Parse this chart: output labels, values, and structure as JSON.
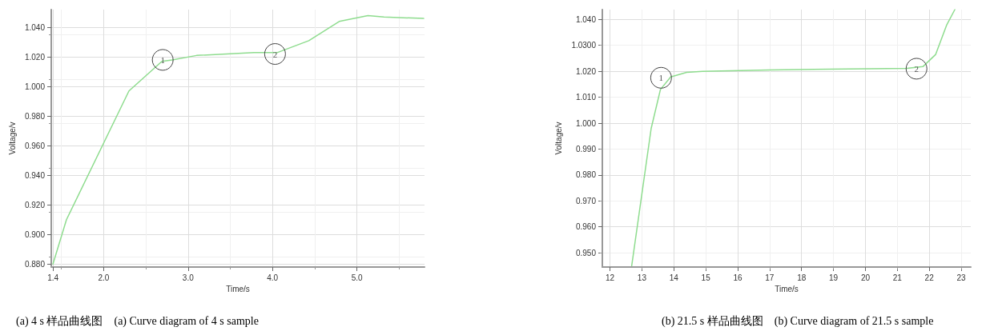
{
  "chart_data": [
    {
      "type": "line",
      "xlabel": "Time/s",
      "ylabel": "Voltage/v",
      "grid": true,
      "marker": "none",
      "xlim": [
        1.38,
        5.8
      ],
      "ylim": [
        0.878,
        1.052
      ],
      "xticks": [
        {
          "value": 1.4,
          "label": "1.4"
        },
        {
          "value": 2,
          "label": "2.0"
        },
        {
          "value": 3,
          "label": "3.0"
        },
        {
          "value": 4,
          "label": "4.0"
        },
        {
          "value": 5,
          "label": "5.0"
        }
      ],
      "yticks": [
        {
          "value": 0.88,
          "label": "0.880"
        },
        {
          "value": 0.9,
          "label": "0.900"
        },
        {
          "value": 0.92,
          "label": "0.920"
        },
        {
          "value": 0.94,
          "label": "0.940"
        },
        {
          "value": 0.96,
          "label": "0.960"
        },
        {
          "value": 0.98,
          "label": "0.980"
        },
        {
          "value": 1.0,
          "label": "1.000"
        },
        {
          "value": 1.02,
          "label": "1.020"
        },
        {
          "value": 1.04,
          "label": "1.040"
        }
      ],
      "series": [
        {
          "color": "#8edc8e",
          "x": [
            1.4,
            1.56,
            2.3,
            2.69,
            2.81,
            3.1,
            3.78,
            4.06,
            4.43,
            4.79,
            5.13,
            5.32,
            5.79
          ],
          "values": [
            0.88,
            0.91,
            0.997,
            1.017,
            1.018,
            1.021,
            1.023,
            1.023,
            1.031,
            1.044,
            1.048,
            1.047,
            1.046
          ]
        }
      ],
      "annotations": [
        {
          "text": "1",
          "x": 2.7,
          "y": 1.018
        },
        {
          "text": "2",
          "x": 4.03,
          "y": 1.022
        },
        "(a) 4 s 样品曲线图　(a) Curve diagram of 4 s sample"
      ]
    },
    {
      "type": "line",
      "xlabel": "Time/s",
      "ylabel": "Voltage/v",
      "grid": true,
      "marker": "none",
      "xlim": [
        11.76,
        23.3
      ],
      "ylim": [
        0.9445,
        1.0438
      ],
      "xticks": [
        12,
        13,
        14,
        15,
        16,
        17,
        18,
        19,
        20,
        21,
        22,
        23
      ],
      "yticks": [
        {
          "value": 0.95,
          "label": "0.950"
        },
        {
          "value": 0.96,
          "label": "0.960"
        },
        {
          "value": 0.97,
          "label": "0.970"
        },
        {
          "value": 0.98,
          "label": "0.980"
        },
        {
          "value": 0.99,
          "label": "0.990"
        },
        {
          "value": 1.0,
          "label": "1.000"
        },
        {
          "value": 1.01,
          "label": "1.010"
        },
        {
          "value": 1.02,
          "label": "1.020"
        },
        {
          "value": 1.03,
          "label": "1.0300"
        },
        {
          "value": 1.04,
          "label": "1.040"
        }
      ],
      "series": [
        {
          "color": "#8edc8e",
          "x": [
            12.68,
            13.29,
            13.58,
            13.9,
            14.4,
            14.9,
            17.0,
            18.9,
            21.3,
            21.8,
            22.2,
            22.55,
            22.8
          ],
          "values": [
            0.945,
            0.998,
            1.013,
            1.0178,
            1.0196,
            1.02,
            1.0205,
            1.0208,
            1.0211,
            1.0218,
            1.0265,
            1.038,
            1.0438
          ]
        }
      ],
      "annotations": [
        {
          "text": "1",
          "x": 13.6,
          "y": 1.0175
        },
        {
          "text": "2",
          "x": 21.6,
          "y": 1.021
        },
        "(b) 21.5 s 样品曲线图　(b) Curve diagram of 21.5 s sample"
      ]
    }
  ]
}
